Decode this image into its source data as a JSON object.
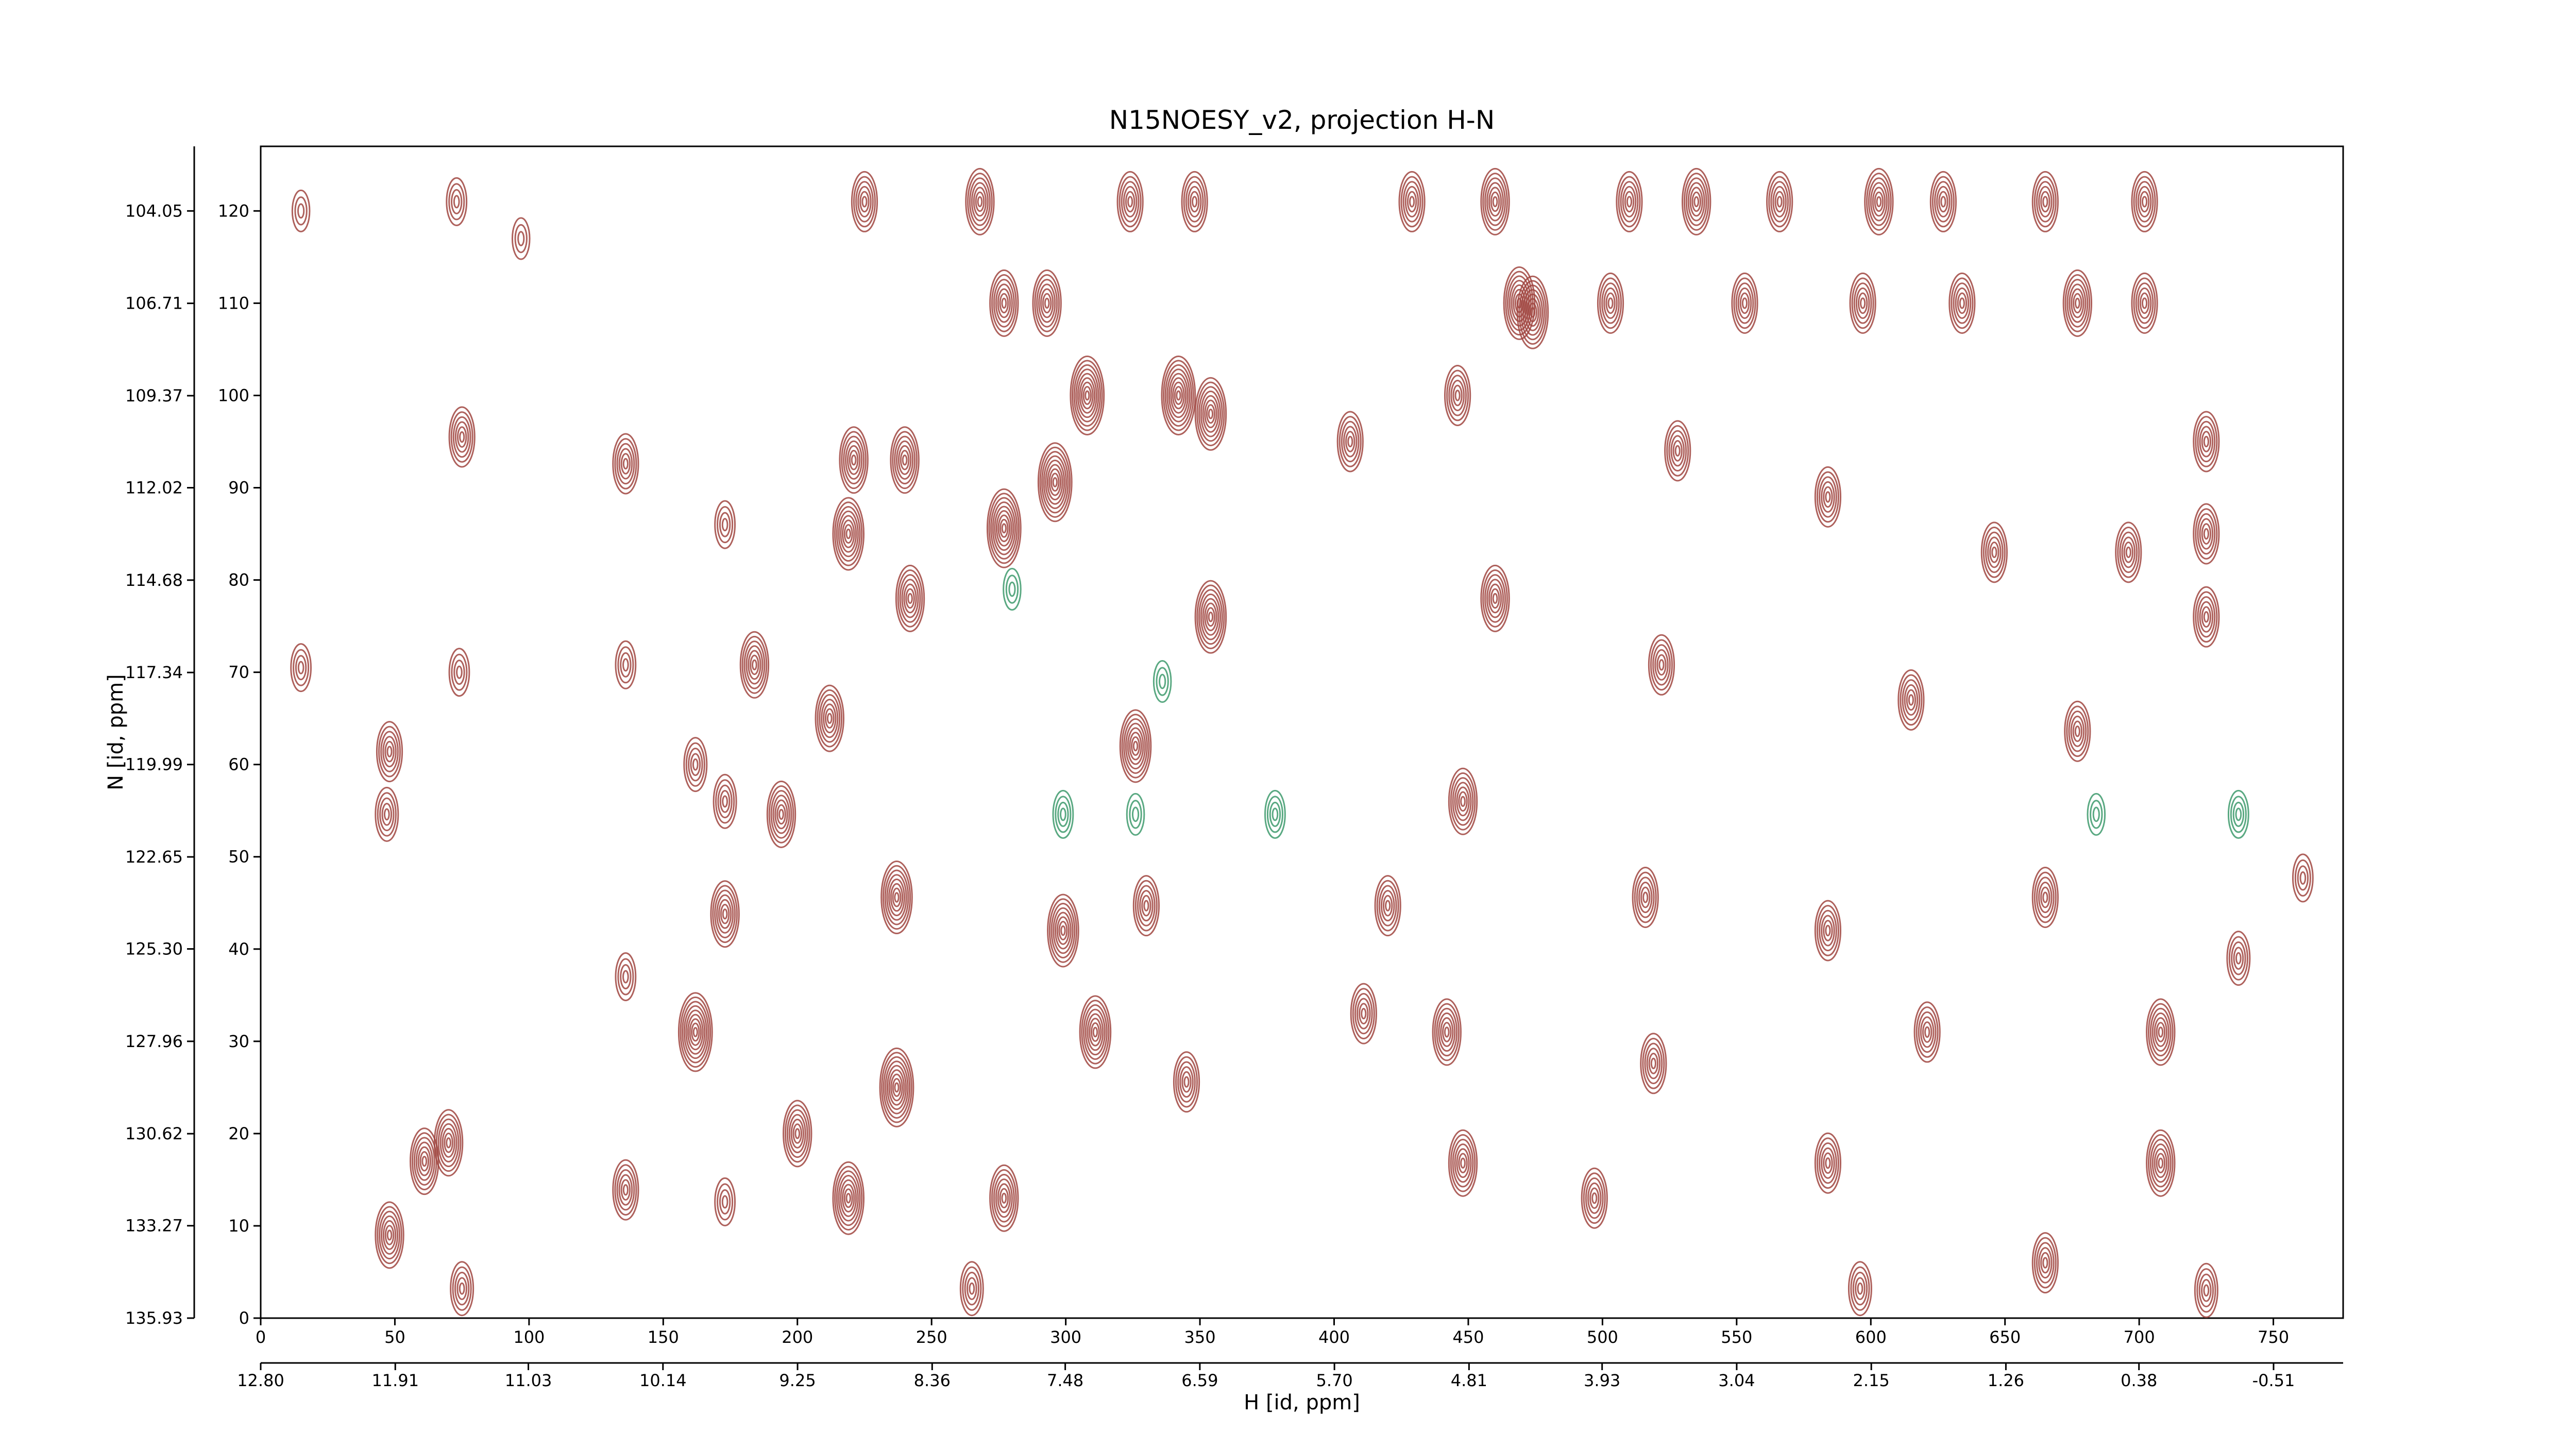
{
  "chart_data": {
    "type": "contour",
    "title": "N15NOESY_v2, projection H-N",
    "xlabel": "H [id, ppm]",
    "ylabel": "N [id, ppm]",
    "xlim": [
      0,
      776
    ],
    "ylim": [
      0,
      127
    ],
    "xticks": [
      0,
      50,
      100,
      150,
      200,
      250,
      300,
      350,
      400,
      450,
      500,
      550,
      600,
      650,
      700,
      750
    ],
    "yticks": [
      0,
      10,
      20,
      30,
      40,
      50,
      60,
      70,
      80,
      90,
      100,
      110,
      120
    ],
    "x2lim": [
      12.8,
      -0.97
    ],
    "x2ticks": [
      {
        "value": 12.8,
        "label": "12.80"
      },
      11.91,
      11.03,
      10.14,
      9.25,
      8.36,
      7.48,
      6.59,
      {
        "value": 5.7,
        "label": "5.70"
      },
      4.81,
      3.93,
      3.04,
      2.15,
      1.26,
      0.38,
      -0.51
    ],
    "y2lim": [
      135.93,
      102.19
    ],
    "y2ticks": [
      104.05,
      106.71,
      109.37,
      112.02,
      114.68,
      117.34,
      119.99,
      122.65,
      {
        "value": 125.3,
        "label": "125.30"
      },
      127.96,
      130.62,
      133.27,
      135.93
    ],
    "series": [
      {
        "color": "#a0453f",
        "x": [
          15,
          73,
          97,
          75,
          136,
          15,
          74,
          48,
          47,
          136,
          162,
          173,
          173,
          136,
          162,
          61,
          70,
          48,
          75,
          136,
          173,
          173,
          406,
          761,
          737,
          725,
          725,
          725,
          725,
          225,
          268,
          324,
          348,
          429,
          460,
          510,
          535,
          566,
          603,
          627,
          665,
          702,
          277,
          293,
          469,
          503,
          553,
          597,
          634,
          677,
          702,
          308,
          342,
          354,
          296,
          240,
          221,
          219,
          242,
          277,
          354,
          326,
          194,
          237,
          299,
          237,
          219,
          277,
          311,
          345,
          200,
          265,
          330,
          184,
          212,
          474,
          446,
          528,
          584,
          646,
          696,
          460,
          522,
          615,
          677,
          448,
          516,
          584,
          665,
          442,
          519,
          621,
          708,
          448,
          497,
          584,
          665,
          596,
          708,
          411,
          420
        ],
        "y": [
          120,
          121,
          117,
          95.5,
          92.6,
          70.5,
          70,
          61.4,
          54.6,
          70.8,
          60,
          56,
          43.8,
          37,
          31,
          17,
          19,
          9,
          3.2,
          13.9,
          12.6,
          86,
          95,
          47.7,
          39,
          3,
          95,
          85,
          76,
          121,
          121,
          121,
          121,
          121,
          121,
          121,
          121,
          121,
          121,
          121,
          121,
          121,
          110,
          110,
          110,
          110,
          110,
          110,
          110,
          110,
          110,
          100,
          100,
          98,
          90.6,
          93,
          93,
          85,
          78,
          85.6,
          76,
          62,
          54.6,
          45.6,
          42,
          25,
          13,
          13,
          31,
          25.6,
          20,
          3.2,
          44.7,
          70.8,
          65,
          109,
          100,
          94,
          89,
          83,
          83,
          78,
          70.8,
          67,
          63.6,
          56,
          45.6,
          42,
          45.6,
          31,
          27.6,
          31,
          31,
          16.8,
          13,
          16.8,
          6,
          3.2,
          16.8,
          33,
          44.7
        ],
        "levels": [
          3,
          4,
          3,
          6,
          6,
          4,
          4,
          6,
          5,
          4,
          5,
          5,
          7,
          4,
          9,
          7,
          7,
          7,
          5,
          6,
          4,
          4,
          6,
          4,
          5,
          5,
          6,
          6,
          6,
          6,
          7,
          6,
          6,
          6,
          7,
          6,
          7,
          6,
          7,
          6,
          6,
          6,
          7,
          7,
          8,
          6,
          6,
          6,
          6,
          7,
          6,
          9,
          9,
          8,
          9,
          7,
          7,
          8,
          7,
          9,
          8,
          8,
          7,
          8,
          8,
          9,
          8,
          7,
          8,
          6,
          7,
          5,
          6,
          7,
          7,
          8,
          6,
          6,
          6,
          6,
          6,
          7,
          6,
          6,
          6,
          7,
          6,
          6,
          6,
          7,
          6,
          6,
          7,
          7,
          6,
          6,
          6,
          5,
          7,
          6,
          6
        ]
      },
      {
        "color": "#3d9a6c",
        "x": [
          737,
          378,
          299,
          326,
          280,
          336,
          684
        ],
        "y": [
          54.6,
          54.6,
          54.6,
          54.6,
          79,
          69,
          54.6
        ],
        "levels": [
          4,
          4,
          4,
          3,
          3,
          3,
          3
        ]
      }
    ]
  }
}
